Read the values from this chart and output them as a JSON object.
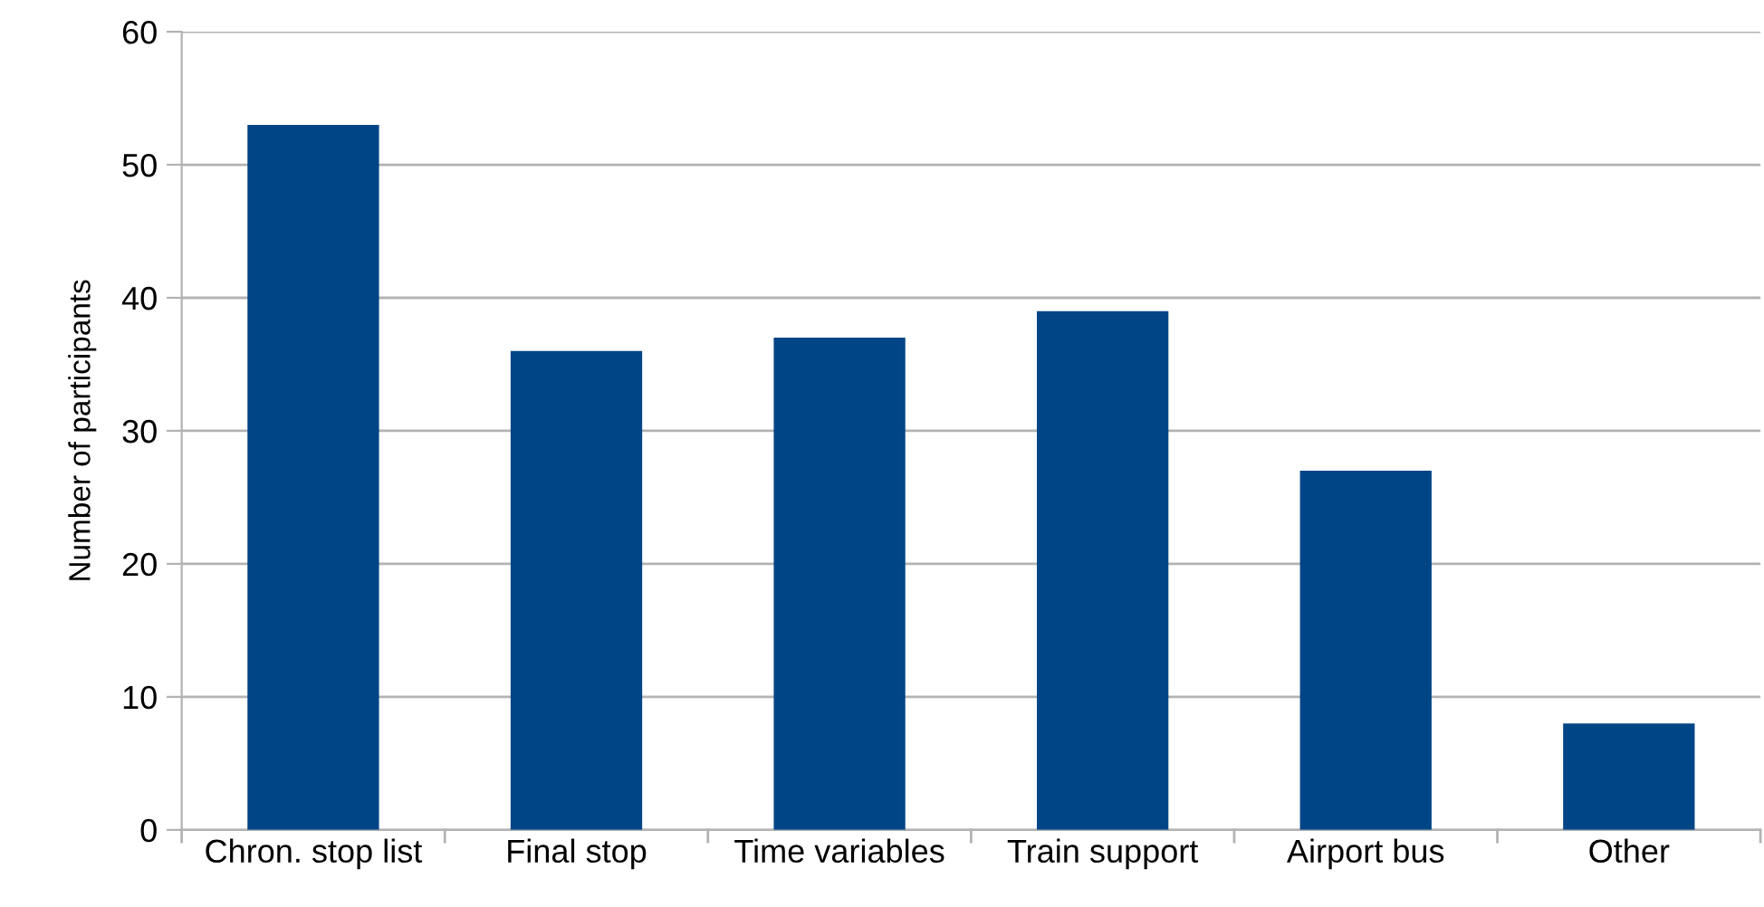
{
  "chart_data": {
    "type": "bar",
    "ylabel": "Number of participants",
    "categories": [
      "Chron. stop list",
      "Final stop",
      "Time variables",
      "Train support",
      "Airport bus",
      "Other"
    ],
    "values": [
      53,
      36,
      37,
      39,
      27,
      8
    ],
    "color": "#004586",
    "ylim": [
      0,
      60
    ],
    "yticks": [
      0,
      10,
      20,
      30,
      40,
      50,
      60
    ],
    "grid": "y",
    "legend": false
  }
}
